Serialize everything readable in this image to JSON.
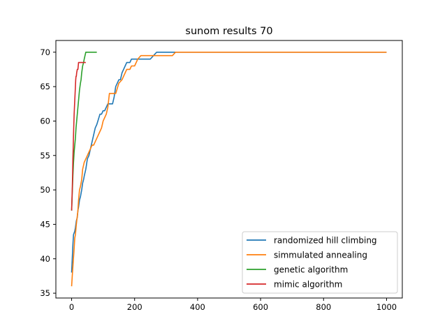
{
  "chart_data": {
    "type": "line",
    "title": "sunom results 70",
    "xlabel": "",
    "ylabel": "",
    "xlim": [
      -50,
      1050
    ],
    "ylim": [
      34.3,
      71.7
    ],
    "x_ticks": [
      0,
      200,
      400,
      600,
      800,
      1000
    ],
    "y_ticks": [
      35,
      40,
      45,
      50,
      55,
      60,
      65,
      70
    ],
    "grid": false,
    "legend_position": "lower-right",
    "series": [
      {
        "name": "randomized hill climbing",
        "color": "#1f77b4",
        "x": [
          0,
          2,
          4,
          6,
          10,
          12,
          15,
          18,
          20,
          22,
          25,
          28,
          30,
          32,
          35,
          38,
          40,
          45,
          50,
          55,
          60,
          65,
          70,
          75,
          80,
          90,
          95,
          100,
          105,
          110,
          115,
          120,
          125,
          130,
          135,
          140,
          145,
          150,
          155,
          160,
          165,
          170,
          175,
          180,
          185,
          190,
          200,
          210,
          220,
          250,
          260,
          270,
          300,
          1000
        ],
        "y": [
          38,
          40,
          42,
          43.5,
          44,
          44.5,
          45.5,
          46,
          47,
          47.5,
          48.5,
          49,
          49.5,
          50,
          51,
          51.5,
          52,
          53,
          54.5,
          55,
          56,
          57,
          58,
          59,
          59.5,
          61,
          61,
          61.5,
          61.5,
          62,
          62.5,
          62.5,
          62.5,
          62.5,
          63.5,
          65,
          65.5,
          66,
          66,
          67,
          67.5,
          68,
          68.5,
          68.5,
          68.5,
          69,
          69,
          69,
          69,
          69,
          69.5,
          70,
          70,
          70
        ]
      },
      {
        "name": "simmulated annealing",
        "color": "#ff7f0e",
        "x": [
          0,
          2,
          5,
          8,
          10,
          12,
          15,
          20,
          22,
          25,
          28,
          30,
          32,
          35,
          40,
          45,
          50,
          55,
          60,
          65,
          70,
          80,
          85,
          90,
          95,
          100,
          105,
          110,
          115,
          120,
          130,
          140,
          150,
          160,
          165,
          170,
          175,
          180,
          185,
          190,
          200,
          210,
          220,
          230,
          250,
          320,
          330,
          1000
        ],
        "y": [
          36,
          37.5,
          39.5,
          41.5,
          43,
          43.5,
          45,
          47,
          48.5,
          50,
          50.5,
          51,
          51.5,
          53,
          54,
          54.5,
          55,
          55.5,
          56,
          56.5,
          56.5,
          57.5,
          58,
          58.5,
          59,
          60,
          60.5,
          61,
          62,
          64,
          64,
          64,
          65.5,
          66,
          66.5,
          67,
          67.5,
          67.5,
          67.5,
          68,
          68,
          69,
          69.5,
          69.5,
          69.5,
          69.5,
          70,
          70
        ]
      },
      {
        "name": "genetic algorithm",
        "color": "#2ca02c",
        "x": [
          0,
          2,
          4,
          6,
          8,
          10,
          12,
          14,
          16,
          18,
          20,
          22,
          25,
          28,
          30,
          32,
          35,
          38,
          40,
          45,
          50,
          80
        ],
        "y": [
          47,
          49.5,
          52,
          54,
          55.5,
          56.5,
          57.5,
          59,
          60,
          61,
          62,
          63,
          64.5,
          65.5,
          66,
          67,
          68,
          68.5,
          69,
          70,
          70,
          70
        ]
      },
      {
        "name": "mimic algorithm",
        "color": "#d62728",
        "x": [
          0,
          2,
          3,
          4,
          5,
          6,
          7,
          8,
          9,
          10,
          11,
          12,
          13,
          14,
          15,
          16,
          18,
          20,
          22,
          25,
          30,
          35,
          40,
          45
        ],
        "y": [
          47,
          50,
          52,
          54.5,
          56,
          58,
          59.5,
          61,
          62,
          63,
          64,
          65,
          66,
          66.5,
          66.5,
          67,
          67.5,
          67.5,
          68.5,
          68.5,
          68.5,
          68.5,
          68.5,
          68.5
        ]
      }
    ]
  }
}
